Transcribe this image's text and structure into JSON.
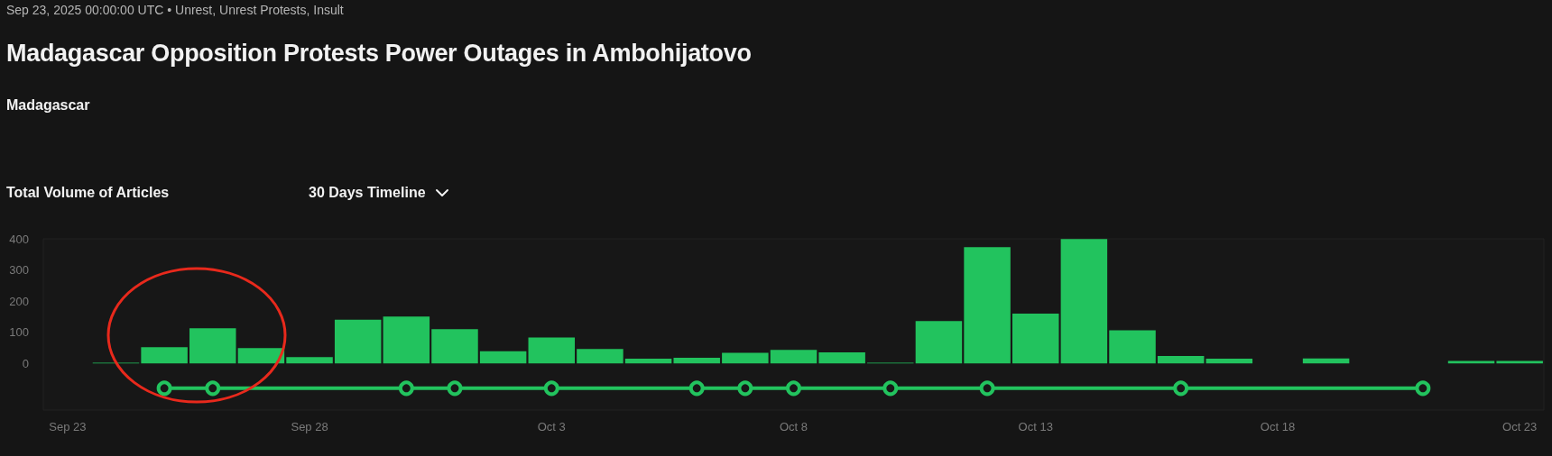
{
  "chart_data": {
    "type": "bar",
    "title": "Madagascar Opposition Protests Power Outages in Ambohijatovo",
    "annotations": [
      "Sep 23, 2025 00:00:00 UTC  •  Unrest, Unrest Protests, Insult",
      "Madagascar",
      "Total Volume of Articles",
      "30 Days Timeline"
    ],
    "x": [
      "2025-09-23",
      "2025-09-24",
      "2025-09-25",
      "2025-09-26",
      "2025-09-27",
      "2025-09-28",
      "2025-09-29",
      "2025-09-30",
      "2025-10-01",
      "2025-10-02",
      "2025-10-03",
      "2025-10-04",
      "2025-10-05",
      "2025-10-06",
      "2025-10-07",
      "2025-10-08",
      "2025-10-09",
      "2025-10-10",
      "2025-10-11",
      "2025-10-12",
      "2025-10-13",
      "2025-10-14",
      "2025-10-15",
      "2025-10-16",
      "2025-10-17",
      "2025-10-18",
      "2025-10-19",
      "2025-10-20",
      "2025-10-21",
      "2025-10-22",
      "2025-10-23"
    ],
    "series": [
      {
        "color": "#22c35e",
        "values": [
          0,
          2,
          52,
          113,
          49,
          20,
          140,
          150,
          110,
          39,
          83,
          46,
          15,
          18,
          34,
          43,
          35,
          2,
          136,
          373,
          160,
          399,
          106,
          24,
          15,
          0,
          16,
          0,
          0,
          8,
          8
        ]
      },
      {
        "type": "line",
        "color": "#22c35e",
        "marker": "circle",
        "x": [
          "2025-09-25",
          "2025-09-26",
          "2025-09-30",
          "2025-10-01",
          "2025-10-03",
          "2025-10-06",
          "2025-10-07",
          "2025-10-08",
          "2025-10-10",
          "2025-10-12",
          "2025-10-16",
          "2025-10-21"
        ],
        "values": [
          -80,
          -80,
          -80,
          -80,
          -80,
          -80,
          -80,
          -80,
          -80,
          -80,
          -80,
          -80
        ]
      }
    ],
    "xticks": [
      {
        "value": "2025-09-23",
        "label": "Sep 23"
      },
      {
        "value": "2025-09-28",
        "label": "Sep 28"
      },
      {
        "value": "2025-10-03",
        "label": "Oct 3"
      },
      {
        "value": "2025-10-08",
        "label": "Oct 8"
      },
      {
        "value": "2025-10-13",
        "label": "Oct 13"
      },
      {
        "value": "2025-10-18",
        "label": "Oct 18"
      },
      {
        "value": "2025-10-23",
        "label": "Oct 23"
      }
    ],
    "xlim": [
      "2025-09-22T12:00",
      "2025-10-23T12:00"
    ],
    "ylim": [
      -150,
      400
    ],
    "yticks": [
      0,
      100,
      200,
      300,
      400
    ],
    "grid": false
  }
}
